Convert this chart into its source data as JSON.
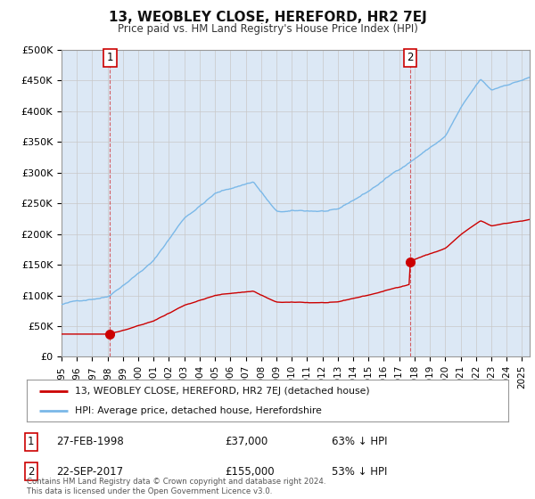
{
  "title": "13, WEOBLEY CLOSE, HEREFORD, HR2 7EJ",
  "subtitle": "Price paid vs. HM Land Registry's House Price Index (HPI)",
  "hpi_color": "#7ab8e8",
  "price_color": "#cc0000",
  "background_color": "#dce8f5",
  "ylim": [
    0,
    500000
  ],
  "yticks": [
    0,
    50000,
    100000,
    150000,
    200000,
    250000,
    300000,
    350000,
    400000,
    450000,
    500000
  ],
  "ytick_labels": [
    "£0",
    "£50K",
    "£100K",
    "£150K",
    "£200K",
    "£250K",
    "£300K",
    "£350K",
    "£400K",
    "£450K",
    "£500K"
  ],
  "xlim_start": 1995.0,
  "xlim_end": 2025.5,
  "transaction1": {
    "date_num": 1998.15,
    "price": 37000,
    "label": "1",
    "date_str": "27-FEB-1998",
    "price_str": "£37,000",
    "pct": "63% ↓ HPI"
  },
  "transaction2": {
    "date_num": 2017.72,
    "price": 155000,
    "label": "2",
    "date_str": "22-SEP-2017",
    "price_str": "£155,000",
    "pct": "53% ↓ HPI"
  },
  "legend_line1": "13, WEOBLEY CLOSE, HEREFORD, HR2 7EJ (detached house)",
  "legend_line2": "HPI: Average price, detached house, Herefordshire",
  "footer": "Contains HM Land Registry data © Crown copyright and database right 2024.\nThis data is licensed under the Open Government Licence v3.0.",
  "xticks": [
    1995,
    1996,
    1997,
    1998,
    1999,
    2000,
    2001,
    2002,
    2003,
    2004,
    2005,
    2006,
    2007,
    2008,
    2009,
    2010,
    2011,
    2012,
    2013,
    2014,
    2015,
    2016,
    2017,
    2018,
    2019,
    2020,
    2021,
    2022,
    2023,
    2024,
    2025
  ],
  "hpi_seed": 42,
  "price_seed": 99,
  "fig_width": 6.0,
  "fig_height": 5.6,
  "dpi": 100
}
